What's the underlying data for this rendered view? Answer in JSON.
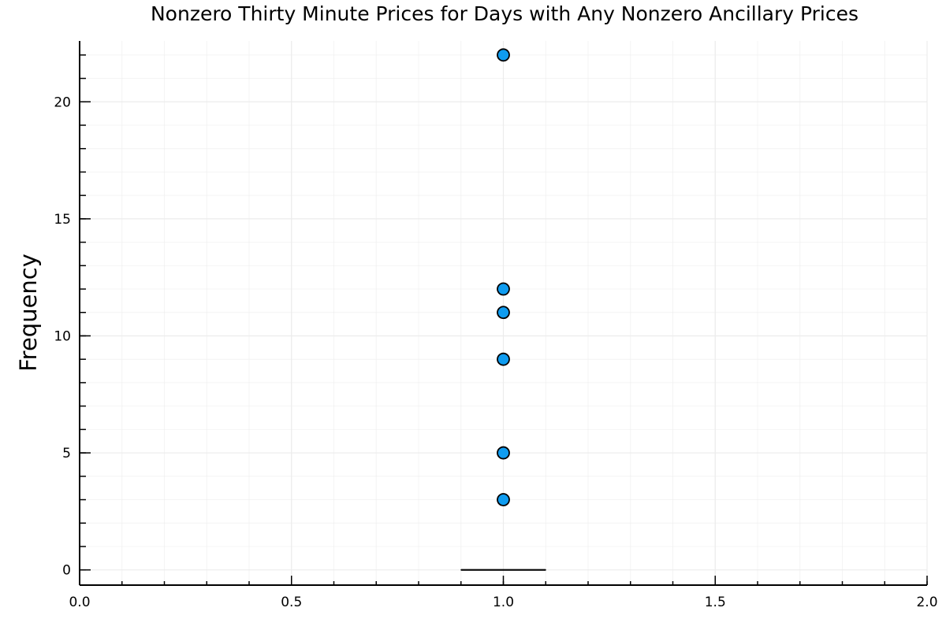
{
  "chart_data": {
    "type": "scatter",
    "title": "Nonzero Thirty Minute Prices for Days with Any Nonzero Ancillary Prices",
    "xlabel": "",
    "ylabel": "Frequency",
    "xlim": [
      0.0,
      2.0
    ],
    "ylim": [
      -0.65,
      22.6
    ],
    "x_ticks": [
      0.0,
      0.5,
      1.0,
      1.5,
      2.0
    ],
    "x_tick_labels": [
      "0.0",
      "0.5",
      "1.0",
      "1.5",
      "2.0"
    ],
    "y_ticks": [
      0,
      5,
      10,
      15,
      20
    ],
    "y_tick_labels": [
      "0",
      "5",
      "10",
      "15",
      "20"
    ],
    "x_minor_step": 0.1,
    "y_minor_step": 1,
    "grid": true,
    "legend": "none",
    "box": {
      "x_center": 1.0,
      "x_range": [
        0.9,
        1.1
      ],
      "q1": 0,
      "median": 0,
      "q3": 0,
      "whisker_low": 0,
      "whisker_high": 0
    },
    "outliers": [
      {
        "x": 1.0,
        "y": 22
      },
      {
        "x": 1.0,
        "y": 12
      },
      {
        "x": 1.0,
        "y": 11
      },
      {
        "x": 1.0,
        "y": 9
      },
      {
        "x": 1.0,
        "y": 5
      },
      {
        "x": 1.0,
        "y": 3
      }
    ],
    "colors": {
      "marker_fill": "#0f9cf0",
      "marker_stroke": "#000000",
      "axis": "#000000",
      "grid": "#ececec",
      "background": "#ffffff"
    }
  }
}
